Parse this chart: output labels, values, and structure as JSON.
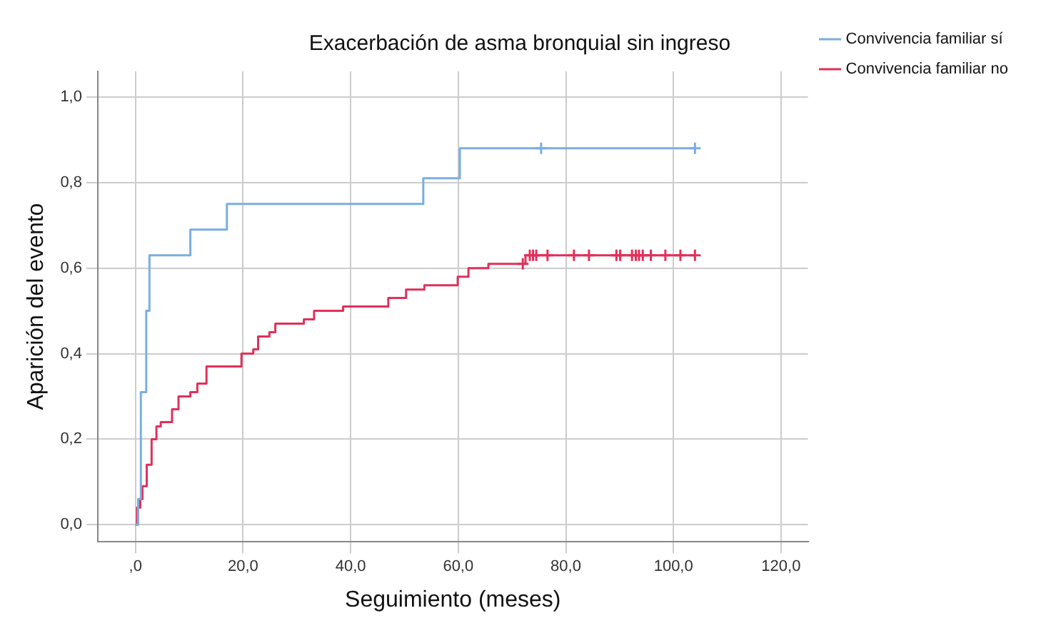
{
  "chart_data": {
    "type": "step",
    "title": "Exacerbación de asma bronquial sin ingreso",
    "xlabel": "Seguimiento (meses)",
    "ylabel": "Aparición del evento",
    "xlim": [
      -7,
      125
    ],
    "xticks": [
      {
        "value": 0,
        "label": ",0"
      },
      {
        "value": 20,
        "label": "20,0"
      },
      {
        "value": 40,
        "label": "40,0"
      },
      {
        "value": 60,
        "label": "60,0"
      },
      {
        "value": 80,
        "label": "80,0"
      },
      {
        "value": 100,
        "label": "100,0"
      },
      {
        "value": 120,
        "label": "120,0"
      }
    ],
    "ylim": [
      -0.04,
      1.06
    ],
    "yticks": [
      {
        "value": 0,
        "label": "0,0"
      },
      {
        "value": 0.2,
        "label": "0,2"
      },
      {
        "value": 0.4,
        "label": "0,4"
      },
      {
        "value": 0.6,
        "label": "0,6"
      },
      {
        "value": 0.8,
        "label": "0,8"
      },
      {
        "value": 1,
        "label": "1,0"
      }
    ],
    "grid": true,
    "legend": "top right",
    "marker": "none",
    "series": [
      {
        "name": "Convivencia familiar sí",
        "color": "#7aaee0",
        "x": [
          0,
          0.5,
          1,
          2,
          2.6,
          10.2,
          17,
          53.5,
          60.3,
          104
        ],
        "values": [
          0,
          0.06,
          0.31,
          0.5,
          0.63,
          0.69,
          0.75,
          0.81,
          0.88,
          0.88
        ]
      },
      {
        "name": "Convivencia familiar no",
        "color": "#e0305a",
        "x": [
          0,
          0.3,
          0.9,
          1.3,
          2.1,
          3,
          3.9,
          4.7,
          6.8,
          8,
          10.2,
          11.5,
          13.2,
          19.7,
          21.9,
          22.8,
          24.9,
          26,
          31.3,
          33.2,
          38.6,
          47,
          50.3,
          53.7,
          59.9,
          61.9,
          65.6,
          72.5,
          104
        ],
        "values": [
          0,
          0.04,
          0.06,
          0.09,
          0.14,
          0.2,
          0.23,
          0.24,
          0.27,
          0.3,
          0.31,
          0.33,
          0.37,
          0.4,
          0.41,
          0.44,
          0.45,
          0.47,
          0.48,
          0.5,
          0.51,
          0.53,
          0.55,
          0.56,
          0.58,
          0.6,
          0.61,
          0.63,
          0.63
        ]
      },
      {
        "type": "scatter",
        "marker": "cross",
        "color": "#7aaee0",
        "x": [
          75.4,
          104
        ],
        "values": [
          0.88,
          0.88
        ]
      },
      {
        "type": "scatter",
        "marker": "cross",
        "color": "#e0305a",
        "x": [
          72,
          73.3,
          73.9,
          74.5,
          76.6,
          81.5,
          84.3,
          89.4,
          90.1,
          92.3,
          93,
          93.6,
          94.3,
          95.8,
          98.5,
          101.3,
          104
        ],
        "values": [
          0.61,
          0.63,
          0.63,
          0.63,
          0.63,
          0.63,
          0.63,
          0.63,
          0.63,
          0.63,
          0.63,
          0.63,
          0.63,
          0.63,
          0.63,
          0.63,
          0.63
        ]
      }
    ]
  }
}
